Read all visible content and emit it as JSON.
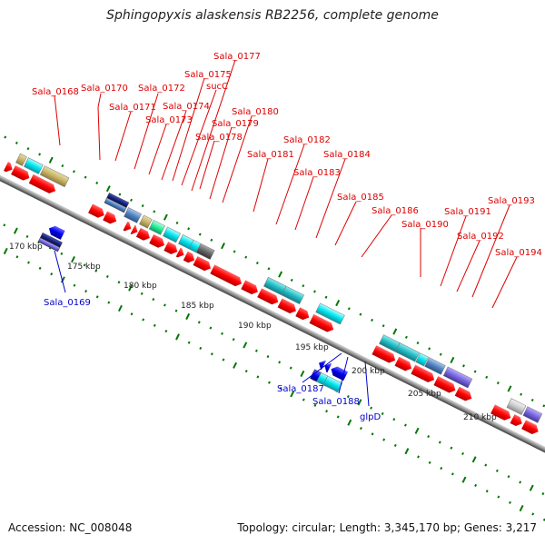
{
  "header": {
    "title": "Sphingopyxis alaskensis RB2256, complete genome"
  },
  "footer": {
    "accession": "Accession: NC_008048",
    "topology": "Topology: circular; Length: 3,345,170 bp; Genes: 3,217"
  },
  "scale": {
    "unit": "kbp",
    "ticks": [
      "170 kbp",
      "175 kbp",
      "180 kbp",
      "185 kbp",
      "190 kbp",
      "195 kbp",
      "200 kbp",
      "205 kbp",
      "210 kbp"
    ]
  },
  "genes_top": [
    "Sala_0168",
    "Sala_0170",
    "Sala_0171",
    "Sala_0172",
    "Sala_0173",
    "Sala_0174",
    "Sala_0175",
    "sucC",
    "Sala_0177",
    "Sala_0178",
    "Sala_0179",
    "Sala_0180",
    "Sala_0181",
    "Sala_0182",
    "Sala_0183",
    "Sala_0184",
    "Sala_0185",
    "Sala_0186",
    "Sala_0190",
    "Sala_0191",
    "Sala_0192",
    "Sala_0193",
    "Sala_0194"
  ],
  "genes_bottom": [
    "Sala_0169",
    "Sala_0187",
    "Sala_0188",
    "glpD"
  ],
  "colors": {
    "cds": "#ff0000",
    "backbone": "#888888",
    "forward_labels": "#dd0000",
    "reverse_labels": "#0000cc",
    "tick_marks": "#007700"
  }
}
